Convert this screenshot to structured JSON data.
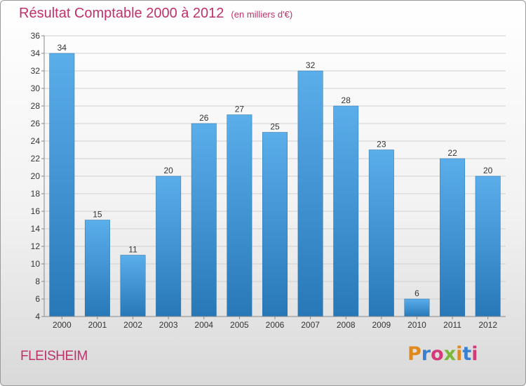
{
  "header": {
    "title": "Résultat Comptable 2000 à 2012",
    "subtitle": "(en milliers d'€)"
  },
  "footer": {
    "city": "FLEISHEIM",
    "logo_letters": [
      "P",
      "r",
      "o",
      "x",
      "i",
      "t",
      "i"
    ]
  },
  "colors": {
    "title": "#c0306a",
    "bar_top": "#5aaeea",
    "bar_bottom": "#2878b8",
    "grid": "#d0d0d0"
  },
  "chart_data": {
    "type": "bar",
    "title": "Résultat Comptable 2000 à 2012",
    "subtitle": "(en milliers d'€)",
    "xlabel": "",
    "ylabel": "",
    "categories": [
      "2000",
      "2001",
      "2002",
      "2003",
      "2004",
      "2005",
      "2006",
      "2007",
      "2008",
      "2009",
      "2010",
      "2011",
      "2012"
    ],
    "values": [
      34,
      15,
      11,
      20,
      26,
      27,
      25,
      32,
      28,
      23,
      6,
      22,
      20
    ],
    "ylim": [
      4,
      36
    ],
    "yticks": [
      4,
      6,
      8,
      10,
      12,
      14,
      16,
      18,
      20,
      22,
      24,
      26,
      28,
      30,
      32,
      34,
      36
    ],
    "grid": true,
    "legend": "none"
  }
}
